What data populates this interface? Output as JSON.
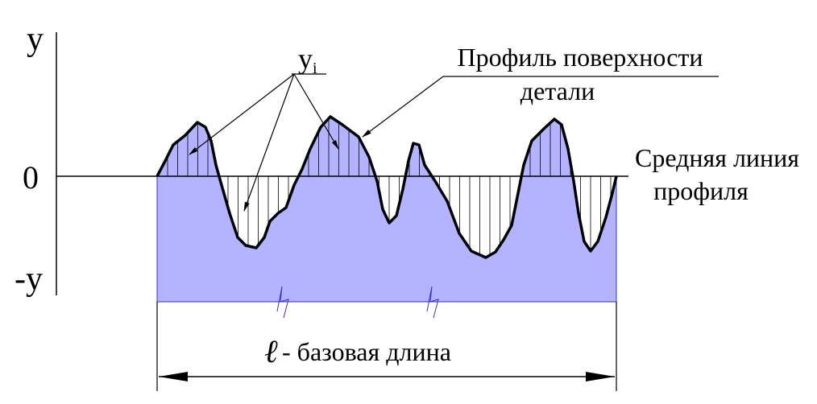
{
  "axis": {
    "top_label": "y",
    "zero_label": "0",
    "bottom_label": "-y"
  },
  "ordinate": {
    "symbol": "y",
    "index": "i"
  },
  "profile_label": {
    "line1": "Профиль поверхности",
    "line2": "детали"
  },
  "mean_line_label": {
    "line1": "Средняя линия",
    "line2": "профиля"
  },
  "base_length": {
    "symbol": "ℓ",
    "text": "- базовая длина"
  }
}
